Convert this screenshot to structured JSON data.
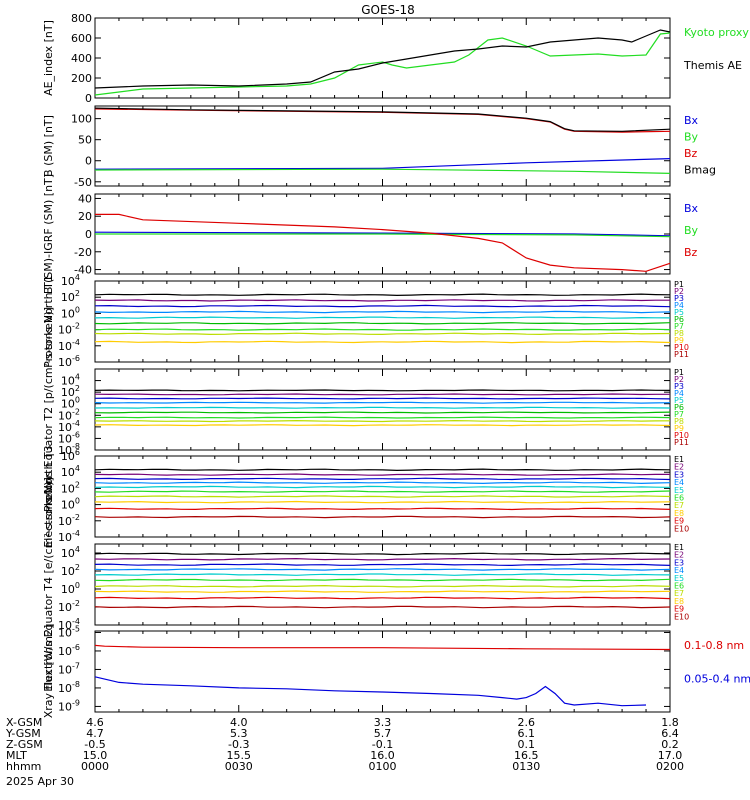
{
  "title": "GOES-18",
  "date_label": "2025 Apr 30",
  "colors": {
    "axis": "#000000",
    "black": "#000000",
    "green": "#22dd22",
    "red": "#dd0000",
    "blue": "#0000dd",
    "darkred": "#aa0000"
  },
  "footer": {
    "row_labels": [
      "X-GSM",
      "Y-GSM",
      "Z-GSM",
      "MLT",
      "hhmm"
    ],
    "columns": [
      {
        "values": [
          "4.6",
          "4.7",
          "-0.5",
          "15.0",
          "0000"
        ]
      },
      {
        "values": [
          "4.0",
          "5.3",
          "-0.3",
          "15.5",
          "0030"
        ]
      },
      {
        "values": [
          "3.3",
          "5.7",
          "-0.1",
          "16.0",
          "0100"
        ]
      },
      {
        "values": [
          "2.6",
          "6.1",
          "0.1",
          "16.5",
          "0130"
        ]
      },
      {
        "values": [
          "1.8",
          "6.4",
          "0.2",
          "17.0",
          "0200"
        ]
      }
    ]
  },
  "chart_data": [
    {
      "type": "line",
      "ylabel": "AE_index [nT]",
      "yticks": [
        "800",
        "600",
        "400",
        "200",
        "0"
      ],
      "ylim": [
        0,
        800
      ],
      "x_range_minutes": [
        0,
        120
      ],
      "series": [
        {
          "name": "Kyoto proxy AE",
          "color": "#22dd22",
          "x": [
            0,
            5,
            10,
            20,
            30,
            40,
            45,
            50,
            55,
            60,
            62,
            65,
            70,
            75,
            78,
            82,
            85,
            90,
            95,
            100,
            105,
            110,
            115,
            118,
            120
          ],
          "y": [
            30,
            60,
            90,
            100,
            110,
            120,
            140,
            200,
            330,
            360,
            330,
            300,
            330,
            360,
            430,
            580,
            600,
            520,
            420,
            430,
            440,
            420,
            430,
            640,
            650
          ]
        },
        {
          "name": "Themis AE",
          "color": "#000000",
          "x": [
            0,
            5,
            10,
            20,
            30,
            40,
            45,
            50,
            55,
            60,
            65,
            70,
            75,
            80,
            85,
            90,
            95,
            100,
            105,
            110,
            112,
            115,
            118,
            120
          ],
          "y": [
            100,
            110,
            120,
            130,
            120,
            140,
            160,
            260,
            290,
            350,
            390,
            430,
            470,
            490,
            520,
            510,
            560,
            580,
            600,
            580,
            560,
            620,
            680,
            660
          ]
        }
      ]
    },
    {
      "type": "line",
      "ylabel": "B (SM) [nT]",
      "yticks": [
        "100",
        "50",
        "0",
        "-50"
      ],
      "ylim": [
        -60,
        130
      ],
      "x_range_minutes": [
        0,
        120
      ],
      "series": [
        {
          "name": "Bx",
          "color": "#0000dd",
          "x": [
            0,
            60,
            90,
            120
          ],
          "y": [
            -20,
            -18,
            -5,
            5
          ]
        },
        {
          "name": "By",
          "color": "#22dd22",
          "x": [
            0,
            60,
            100,
            120
          ],
          "y": [
            -22,
            -20,
            -25,
            -30
          ]
        },
        {
          "name": "Bz",
          "color": "#dd0000",
          "x": [
            0,
            20,
            60,
            80,
            90,
            95,
            98,
            100,
            110,
            120
          ],
          "y": [
            123,
            120,
            115,
            110,
            100,
            92,
            75,
            70,
            68,
            70
          ]
        },
        {
          "name": "Bmag",
          "color": "#000000",
          "x": [
            0,
            20,
            60,
            80,
            90,
            95,
            98,
            100,
            110,
            120
          ],
          "y": [
            125,
            121,
            116,
            111,
            101,
            93,
            76,
            71,
            70,
            75
          ]
        }
      ]
    },
    {
      "type": "line",
      "ylabel": "B (SM)-IGRF (SM) [nT]",
      "yticks": [
        "40",
        "20",
        "0",
        "-20",
        "-40"
      ],
      "ylim": [
        -45,
        45
      ],
      "x_range_minutes": [
        0,
        120
      ],
      "series": [
        {
          "name": "Bx",
          "color": "#0000dd",
          "x": [
            0,
            60,
            100,
            120
          ],
          "y": [
            2,
            1,
            0,
            -2
          ]
        },
        {
          "name": "By",
          "color": "#22dd22",
          "x": [
            0,
            60,
            100,
            120
          ],
          "y": [
            0,
            0,
            -1,
            -3
          ]
        },
        {
          "name": "Bz",
          "color": "#dd0000",
          "x": [
            0,
            5,
            10,
            30,
            50,
            60,
            70,
            80,
            85,
            90,
            95,
            100,
            110,
            115,
            120
          ],
          "y": [
            22,
            22,
            16,
            12,
            8,
            5,
            1,
            -5,
            -10,
            -27,
            -35,
            -38,
            -40,
            -42,
            -33
          ]
        }
      ]
    },
    {
      "type": "line",
      "ylabel": "Protons North T1",
      "yscale": "log",
      "yticks": [
        "10^4",
        "10^2",
        "10^0",
        "10^-2",
        "10^-4",
        "10^-6"
      ],
      "ylim": [
        1e-06,
        10000.0
      ],
      "x_range_minutes": [
        0,
        120
      ],
      "series": [
        {
          "name": "P1",
          "color": "#000000",
          "y_approx": 200
        },
        {
          "name": "P2",
          "color": "#770077",
          "y_approx": 40
        },
        {
          "name": "P3",
          "color": "#0000cc",
          "y_approx": 8
        },
        {
          "name": "P4",
          "color": "#0088ff",
          "y_approx": 1.5
        },
        {
          "name": "P5",
          "color": "#00cccc",
          "y_approx": 0.3
        },
        {
          "name": "P6",
          "color": "#00bb00",
          "y_approx": 0.06
        },
        {
          "name": "P7",
          "color": "#22dd22",
          "y_approx": 0.01
        },
        {
          "name": "P8",
          "color": "#bbdd00",
          "y_approx": 0.003
        },
        {
          "name": "P9",
          "color": "#ffcc00",
          "y_approx": 0.0003
        },
        {
          "name": "P10",
          "color": "#dd0000",
          "y_approx": null
        },
        {
          "name": "P11",
          "color": "#aa0000",
          "y_approx": null
        }
      ]
    },
    {
      "type": "line",
      "ylabel": "Protons Equator T2 [p/(cm²-s-sr-keV)]",
      "yscale": "log",
      "yticks": [
        "10^4",
        "10^2",
        "10^0",
        "10^-2",
        "10^-4",
        "10^-6",
        "10^-8"
      ],
      "ylim": [
        1e-08,
        1000000.0
      ],
      "x_range_minutes": [
        0,
        120
      ],
      "series": [
        {
          "name": "P1",
          "color": "#000000",
          "y_approx": 200
        },
        {
          "name": "P2",
          "color": "#770077",
          "y_approx": 40
        },
        {
          "name": "P3",
          "color": "#0000cc",
          "y_approx": 8
        },
        {
          "name": "P4",
          "color": "#0088ff",
          "y_approx": 1.5
        },
        {
          "name": "P5",
          "color": "#00cccc",
          "y_approx": 0.2
        },
        {
          "name": "P6",
          "color": "#00bb00",
          "y_approx": 0.03
        },
        {
          "name": "P7",
          "color": "#22dd22",
          "y_approx": 0.004
        },
        {
          "name": "P8",
          "color": "#bbdd00",
          "y_approx": 0.001
        },
        {
          "name": "P9",
          "color": "#ffcc00",
          "y_approx": 0.0002
        },
        {
          "name": "P10",
          "color": "#dd0000",
          "y_approx": null
        },
        {
          "name": "P11",
          "color": "#aa0000",
          "y_approx": null
        }
      ]
    },
    {
      "type": "line",
      "ylabel": "Electrons North T3",
      "yscale": "log",
      "yticks": [
        "10^6",
        "10^4",
        "10^2",
        "10^0",
        "10^-2",
        "10^-4"
      ],
      "ylim": [
        0.0001,
        1000000.0
      ],
      "x_range_minutes": [
        0,
        120
      ],
      "series": [
        {
          "name": "E1",
          "color": "#000000",
          "y_approx": 20000
        },
        {
          "name": "E2",
          "color": "#770077",
          "y_approx": 5000
        },
        {
          "name": "E3",
          "color": "#0000cc",
          "y_approx": 1500
        },
        {
          "name": "E4",
          "color": "#0088ff",
          "y_approx": 500
        },
        {
          "name": "E5",
          "color": "#00cccc",
          "y_approx": 150
        },
        {
          "name": "E6",
          "color": "#22dd22",
          "y_approx": 40
        },
        {
          "name": "E7",
          "color": "#bbdd00",
          "y_approx": 10
        },
        {
          "name": "E8",
          "color": "#ffcc00",
          "y_approx": 2
        },
        {
          "name": "E9",
          "color": "#dd0000",
          "y_approx": 0.3
        },
        {
          "name": "E10",
          "color": "#aa0000",
          "y_approx": 0.03
        }
      ]
    },
    {
      "type": "line",
      "ylabel": "Electrons Equator T4 [e/(cm²-s-sr-keV)]",
      "yscale": "log",
      "yticks": [
        "10^4",
        "10^2",
        "10^0",
        "10^-2",
        "10^-4"
      ],
      "ylim": [
        0.0001,
        100000.0
      ],
      "x_range_minutes": [
        0,
        120
      ],
      "series": [
        {
          "name": "E1",
          "color": "#000000",
          "y_approx": 8000
        },
        {
          "name": "E2",
          "color": "#770077",
          "y_approx": 2000
        },
        {
          "name": "E3",
          "color": "#0000cc",
          "y_approx": 500
        },
        {
          "name": "E4",
          "color": "#0088ff",
          "y_approx": 150
        },
        {
          "name": "E5",
          "color": "#00cccc",
          "y_approx": 40
        },
        {
          "name": "E6",
          "color": "#22dd22",
          "y_approx": 10
        },
        {
          "name": "E7",
          "color": "#bbdd00",
          "y_approx": 2
        },
        {
          "name": "E8",
          "color": "#ffcc00",
          "y_approx": 0.5
        },
        {
          "name": "E9",
          "color": "#dd0000",
          "y_approx": 0.1
        },
        {
          "name": "E10",
          "color": "#aa0000",
          "y_approx": 0.01
        }
      ]
    },
    {
      "type": "line",
      "ylabel": "Xray flux [W/m2]",
      "yscale": "log",
      "yticks": [
        "10^-5",
        "10^-6",
        "10^-7",
        "10^-8",
        "10^-9"
      ],
      "ylim": [
        5e-10,
        1.2e-05
      ],
      "x_range_minutes": [
        0,
        120
      ],
      "series": [
        {
          "name": "0.1-0.8 nm",
          "color": "#dd0000",
          "x": [
            0,
            2,
            10,
            30,
            60,
            90,
            120
          ],
          "y": [
            2e-06,
            1.8e-06,
            1.6e-06,
            1.5e-06,
            1.5e-06,
            1.3e-06,
            1.2e-06
          ]
        },
        {
          "name": "0.05-0.4 nm",
          "color": "#0000dd",
          "x": [
            0,
            5,
            10,
            20,
            30,
            40,
            50,
            60,
            70,
            80,
            85,
            88,
            90,
            92,
            94,
            96,
            98,
            100,
            105,
            110,
            115
          ],
          "y": [
            4e-08,
            2e-08,
            1.6e-08,
            1.3e-08,
            1e-08,
            9e-09,
            7e-09,
            6e-09,
            5e-09,
            4e-09,
            3e-09,
            2.5e-09,
            3e-09,
            5e-09,
            1.2e-08,
            5e-09,
            1.5e-09,
            1.2e-09,
            1.5e-09,
            1.1e-09,
            1.2e-09
          ]
        }
      ]
    }
  ]
}
